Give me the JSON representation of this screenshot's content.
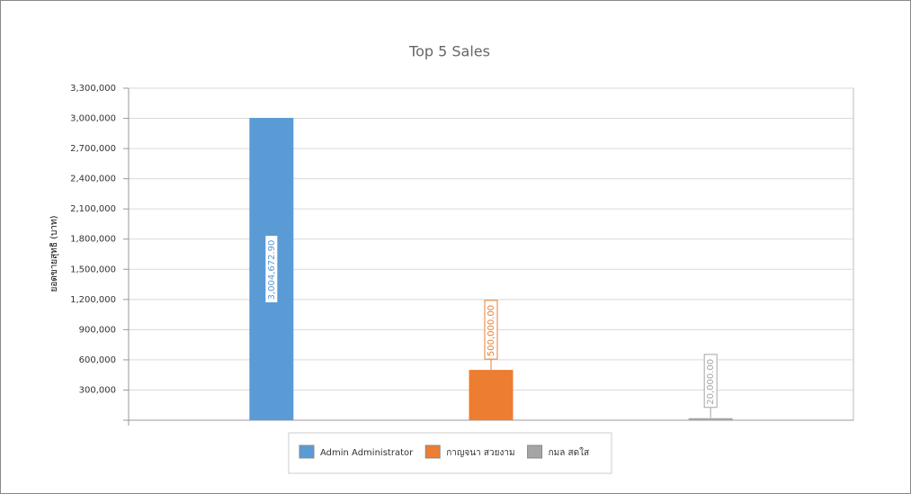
{
  "chart_data": {
    "type": "bar",
    "title": "Top 5 Sales",
    "y_label": "ยอดขายสุทธิ (บาท)",
    "categories": [
      null,
      null,
      null
    ],
    "series": [
      {
        "name": "Admin Administrator",
        "color": "#5b9bd5",
        "values": [
          3004672.9,
          null,
          null
        ],
        "value_labels": [
          "3,004,672.90",
          null,
          null
        ]
      },
      {
        "name": "กาญจนา สวยงาม",
        "color": "#ed7d31",
        "values": [
          null,
          500000,
          null
        ],
        "value_labels": [
          null,
          "500,000.00",
          null
        ]
      },
      {
        "name": "กมล สดใส",
        "color": "#a5a5a5",
        "values": [
          null,
          null,
          20000
        ],
        "value_labels": [
          null,
          null,
          "20,000.00"
        ]
      }
    ],
    "ylim": [
      0,
      3300000
    ],
    "yticks": [
      {
        "value": 300000,
        "label": "300,000"
      },
      {
        "value": 600000,
        "label": "600,000"
      },
      {
        "value": 900000,
        "label": "900,000"
      },
      {
        "value": 1200000,
        "label": "1,200,000"
      },
      {
        "value": 1500000,
        "label": "1,500,000"
      },
      {
        "value": 1800000,
        "label": "1,800,000"
      },
      {
        "value": 2100000,
        "label": "2,100,000"
      },
      {
        "value": 2400000,
        "label": "2,400,000"
      },
      {
        "value": 2700000,
        "label": "2,700,000"
      },
      {
        "value": 3000000,
        "label": "3,000,000"
      },
      {
        "value": 3300000,
        "label": "3,300,000"
      }
    ],
    "grid": true,
    "legend": "bottom"
  }
}
